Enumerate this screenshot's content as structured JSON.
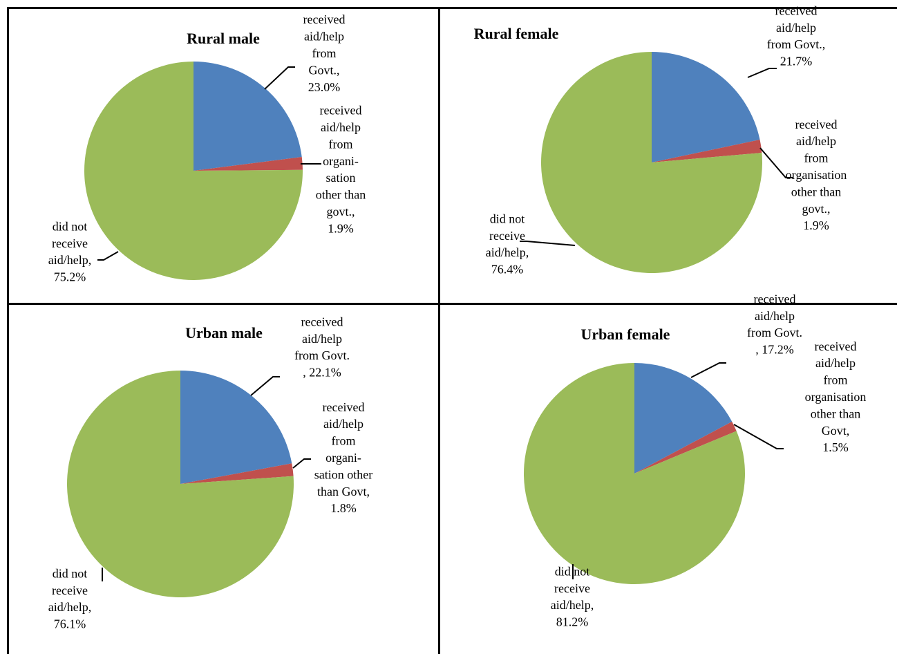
{
  "colors": {
    "govt": "#4F81BD",
    "org": "#C0504D",
    "none": "#9BBB59",
    "border": "#000000"
  },
  "chart_data": [
    {
      "type": "pie",
      "title": "Rural male",
      "slices": [
        {
          "label": [
            "received",
            "aid/help",
            "from",
            "Govt.,",
            "23.0%"
          ],
          "value": 23.0,
          "color_key": "govt"
        },
        {
          "label": [
            "received",
            "aid/help",
            "from",
            "organi-",
            "sation",
            "other than",
            "govt.,",
            "1.9%"
          ],
          "value": 1.9,
          "color_key": "org"
        },
        {
          "label": [
            "did not",
            "receive",
            "aid/help,",
            "75.2%"
          ],
          "value": 75.2,
          "color_key": "none"
        }
      ]
    },
    {
      "type": "pie",
      "title": "Rural female",
      "slices": [
        {
          "label": [
            "received",
            "aid/help",
            "from Govt.,",
            "21.7%"
          ],
          "value": 21.7,
          "color_key": "govt"
        },
        {
          "label": [
            "received",
            "aid/help",
            "from",
            "organisation",
            "other than",
            "govt.,",
            "1.9%"
          ],
          "value": 1.9,
          "color_key": "org"
        },
        {
          "label": [
            "did not",
            "receive",
            "aid/help,",
            "76.4%"
          ],
          "value": 76.4,
          "color_key": "none"
        }
      ]
    },
    {
      "type": "pie",
      "title": "Urban male",
      "slices": [
        {
          "label": [
            "received",
            "aid/help",
            "from Govt.",
            ", 22.1%"
          ],
          "value": 22.1,
          "color_key": "govt"
        },
        {
          "label": [
            "received",
            "aid/help",
            "from",
            "organi-",
            "sation other",
            "than Govt,",
            "1.8%"
          ],
          "value": 1.8,
          "color_key": "org"
        },
        {
          "label": [
            "did not",
            "receive",
            "aid/help,",
            "76.1%"
          ],
          "value": 76.1,
          "color_key": "none"
        }
      ]
    },
    {
      "type": "pie",
      "title": "Urban female",
      "slices": [
        {
          "label": [
            "received",
            "aid/help",
            "from Govt.",
            ", 17.2%"
          ],
          "value": 17.2,
          "color_key": "govt"
        },
        {
          "label": [
            "received",
            "aid/help",
            "from",
            "organisation",
            "other than",
            "Govt,",
            "1.5%"
          ],
          "value": 1.5,
          "color_key": "org"
        },
        {
          "label": [
            "did not",
            "receive",
            "aid/help,",
            "81.2%"
          ],
          "value": 81.2,
          "color_key": "none"
        }
      ]
    }
  ]
}
